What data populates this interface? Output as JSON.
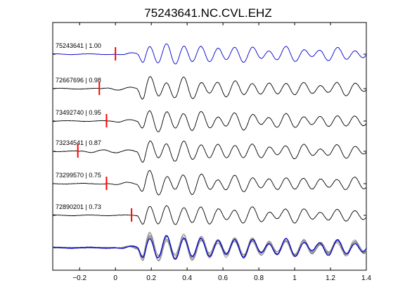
{
  "chart_data": {
    "type": "line",
    "title": "75243641.NC.CVL.EHZ",
    "xlabel": "",
    "ylabel": "",
    "xlim": [
      -0.35,
      1.4
    ],
    "x_ticks": [
      -0.2,
      0,
      0.2,
      0.4,
      0.6,
      0.8,
      1,
      1.2,
      1.4
    ],
    "x_tick_labels": [
      "−0.2",
      "0",
      "0.2",
      "0.4",
      "0.6",
      "0.8",
      "1",
      "1.2",
      "1.4"
    ],
    "grid": false,
    "colors": {
      "reference": "#0000cc",
      "correlated": "#000000",
      "overlay": "#888888",
      "pick": "#ff0000"
    },
    "traces": [
      {
        "event_id": "75243641",
        "correlation": "1.00",
        "label": "75243641 | 1.00",
        "pick_time": 0.0,
        "reference": true
      },
      {
        "event_id": "72667696",
        "correlation": "0.98",
        "label": "72667696 | 0.98",
        "pick_time": -0.09,
        "reference": false
      },
      {
        "event_id": "73492740",
        "correlation": "0.95",
        "label": "73492740 | 0.95",
        "pick_time": -0.05,
        "reference": false
      },
      {
        "event_id": "73234541",
        "correlation": "0.87",
        "label": "73234541 | 0.87",
        "pick_time": -0.21,
        "reference": false
      },
      {
        "event_id": "73299570",
        "correlation": "0.75",
        "label": "73299570 | 0.75",
        "pick_time": -0.05,
        "reference": false
      },
      {
        "event_id": "72890201",
        "correlation": "0.73",
        "label": "72890201 | 0.73",
        "pick_time": 0.09,
        "reference": false
      }
    ],
    "overlay": {
      "description_visible": false
    }
  }
}
